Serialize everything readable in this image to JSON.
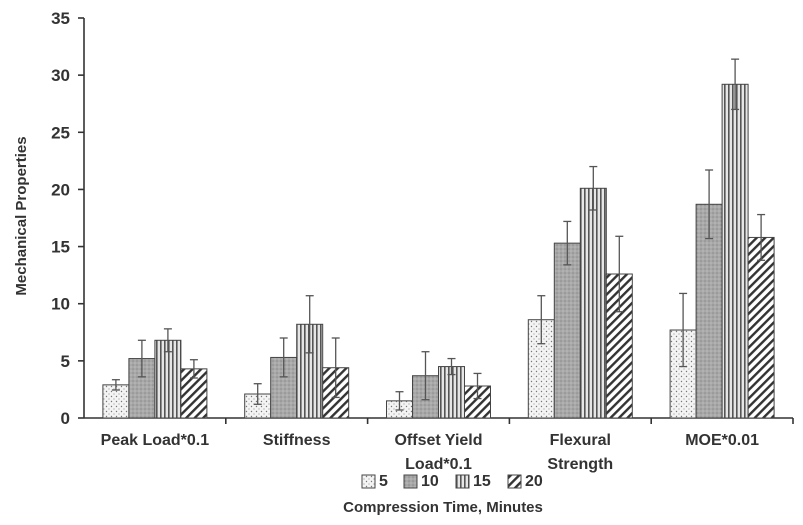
{
  "chart_data": {
    "type": "bar",
    "title": "",
    "xlabel": "Compression Time, Minutes",
    "ylabel": "Mechanical Properties",
    "ylim": [
      0,
      35
    ],
    "yticks": [
      "0",
      "5",
      "10",
      "15",
      "20",
      "25",
      "30",
      "35"
    ],
    "categories": [
      [
        "Peak Load*0.1"
      ],
      [
        "Stiffness"
      ],
      [
        "Offset Yield",
        "Load*0.1"
      ],
      [
        "Flexural",
        "Strength"
      ],
      [
        "MOE*0.01"
      ]
    ],
    "legend_position": "bottom",
    "series": [
      {
        "name": "5",
        "pattern": "dots",
        "values": [
          2.9,
          2.1,
          1.5,
          8.6,
          7.7
        ],
        "errors": [
          0.45,
          0.9,
          0.8,
          2.1,
          3.2
        ]
      },
      {
        "name": "10",
        "pattern": "gray",
        "values": [
          5.2,
          5.3,
          3.7,
          15.3,
          18.7
        ],
        "errors": [
          1.6,
          1.7,
          2.1,
          1.9,
          3.0
        ]
      },
      {
        "name": "15",
        "pattern": "vertical",
        "values": [
          6.8,
          8.2,
          4.5,
          20.1,
          29.2
        ],
        "errors": [
          1.0,
          2.5,
          0.7,
          1.9,
          2.2
        ]
      },
      {
        "name": "20",
        "pattern": "diagonal",
        "values": [
          4.3,
          4.4,
          2.8,
          12.6,
          15.8
        ],
        "errors": [
          0.8,
          2.6,
          1.1,
          3.3,
          2.0
        ]
      }
    ]
  }
}
